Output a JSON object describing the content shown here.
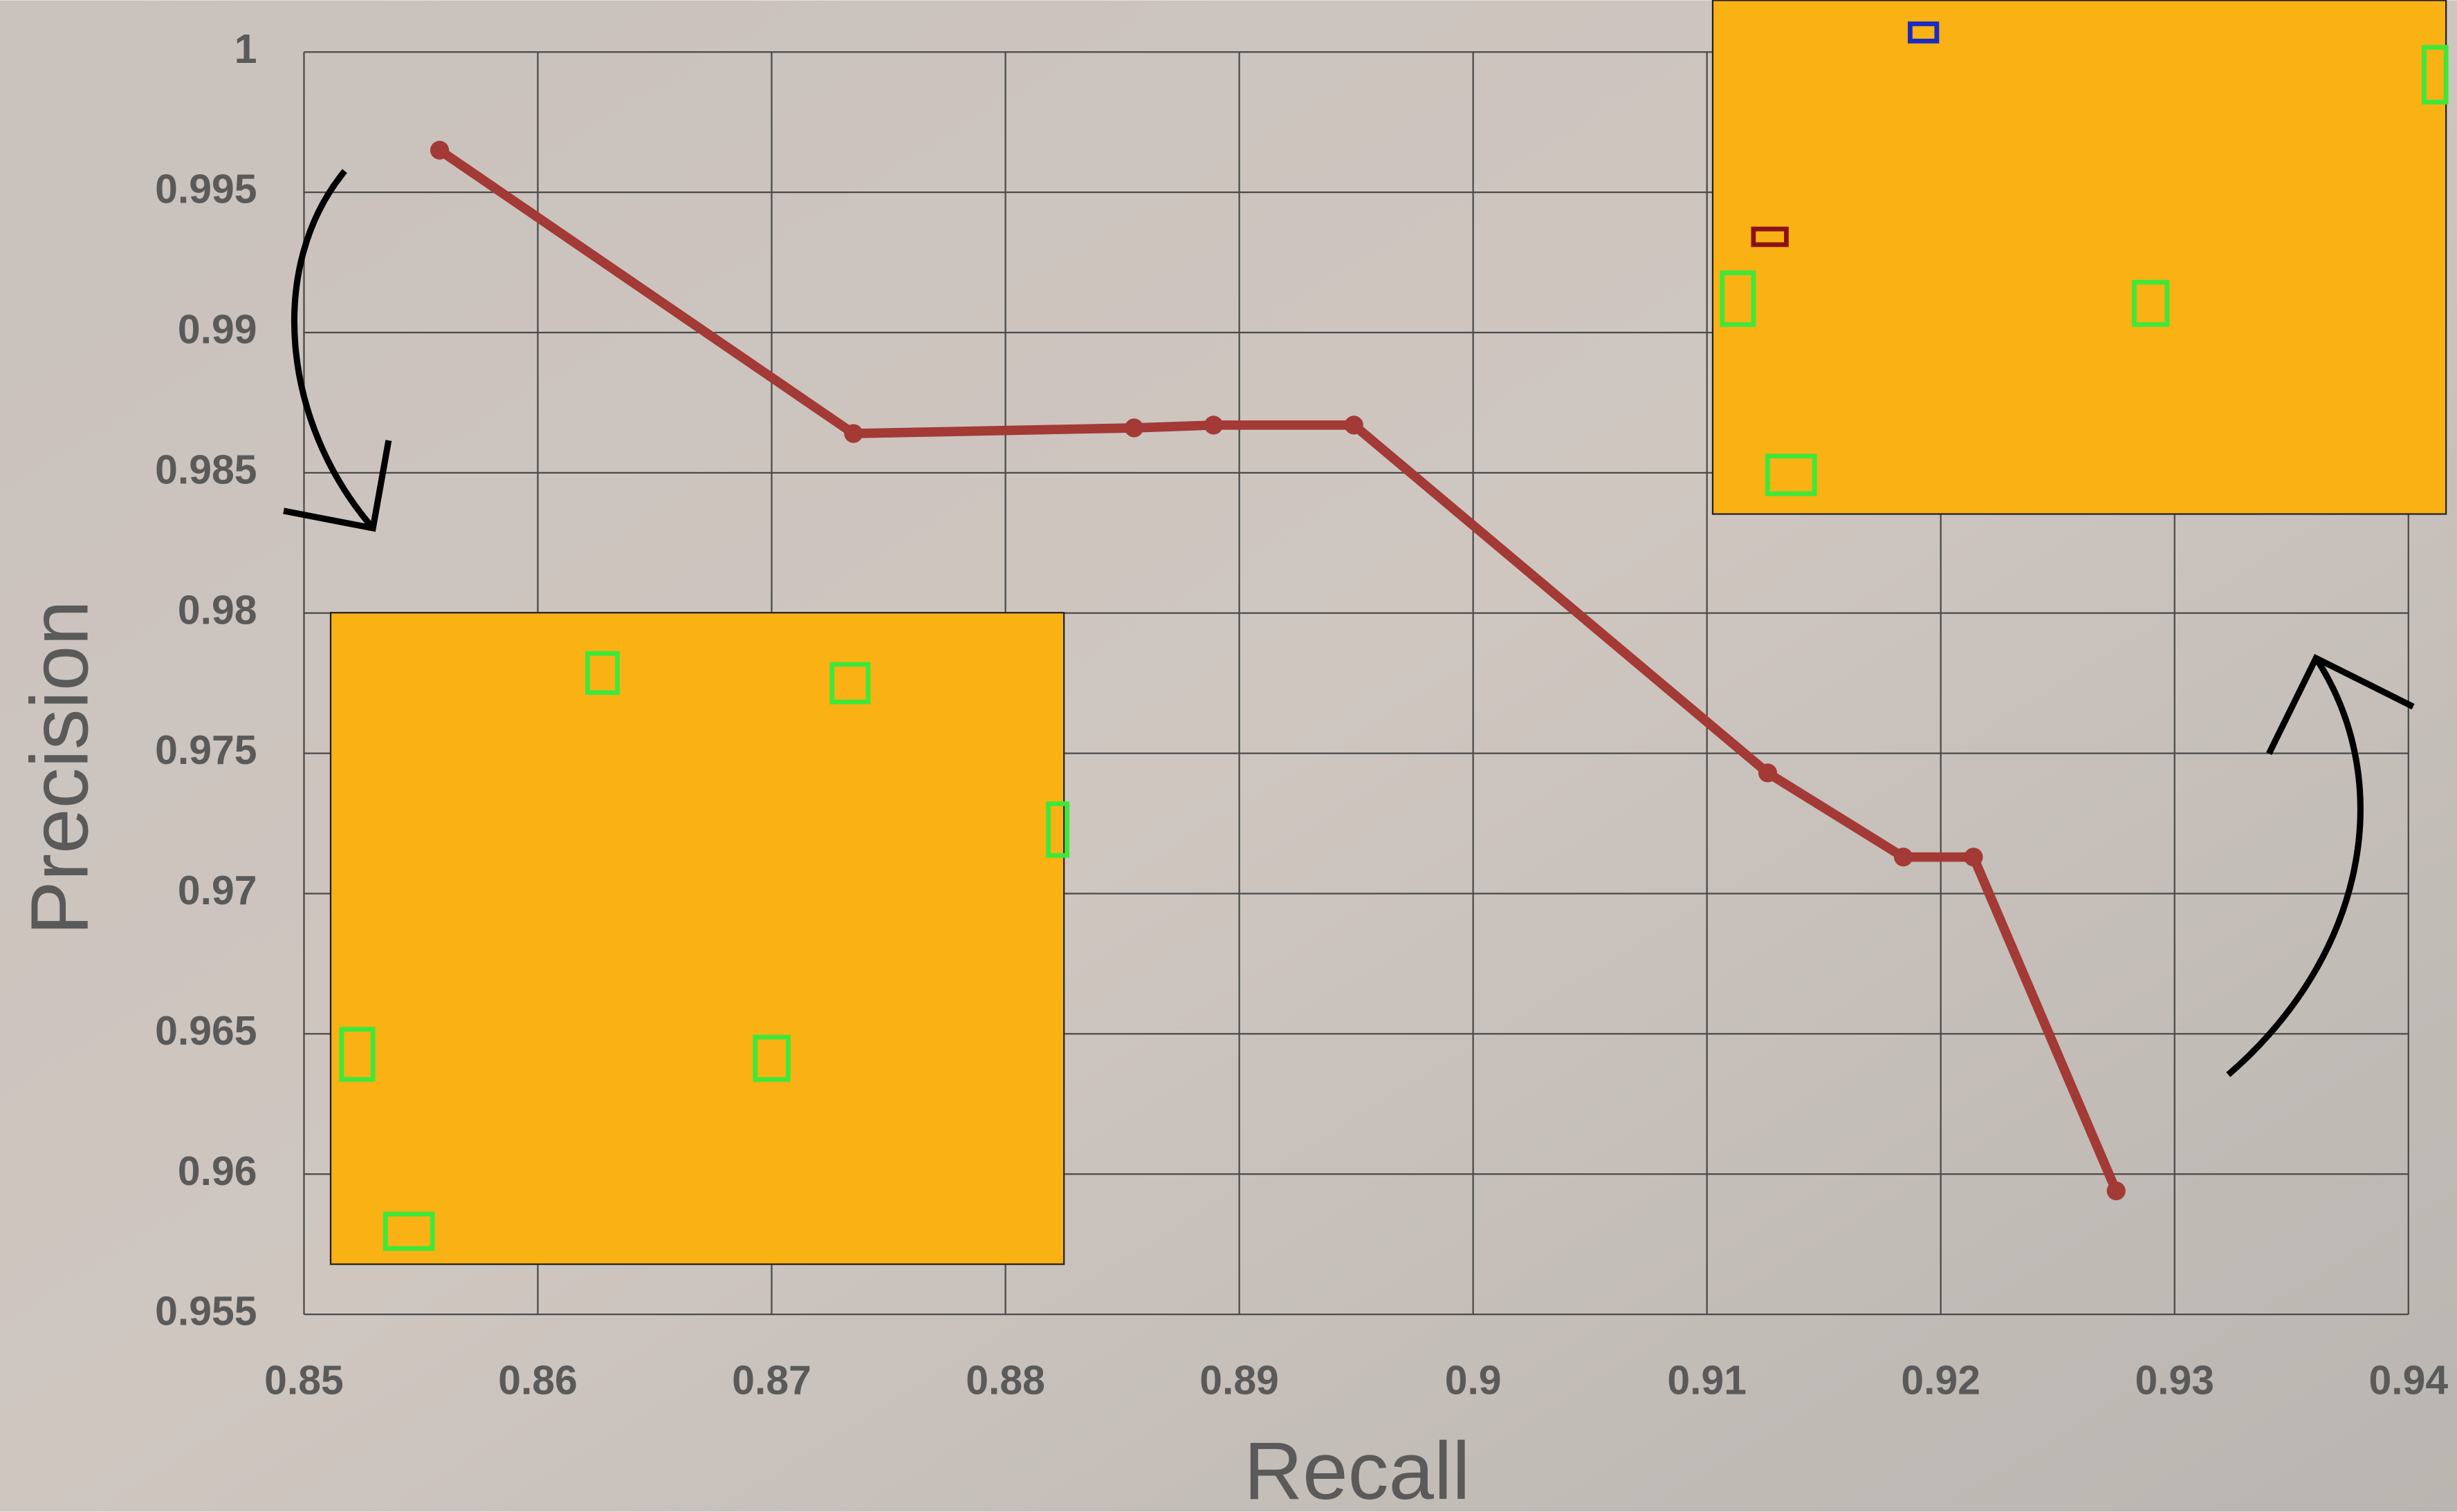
{
  "chart_data": {
    "type": "line",
    "x_label": "Recall",
    "y_label": "Precision",
    "x": [
      0.8558,
      0.8735,
      0.8855,
      0.8889,
      0.8949,
      0.9126,
      0.9184,
      0.9214,
      0.9275
    ],
    "series": [
      {
        "name": "Precision-Recall",
        "color": "#a33a35",
        "values": [
          0.9965,
          0.9864,
          0.9866,
          0.9867,
          0.9867,
          0.9743,
          0.9713,
          0.9713,
          0.9594
        ]
      }
    ],
    "xlim": [
      0.85,
      0.94
    ],
    "xticks": [
      0.85,
      0.86,
      0.87,
      0.88,
      0.89,
      0.9,
      0.91,
      0.92,
      0.93,
      0.94
    ],
    "ylim": [
      0.955,
      1
    ],
    "yticks": [
      0.955,
      0.96,
      0.965,
      0.97,
      0.975,
      0.98,
      0.985,
      0.99,
      0.995,
      1
    ],
    "grid": true
  }
}
